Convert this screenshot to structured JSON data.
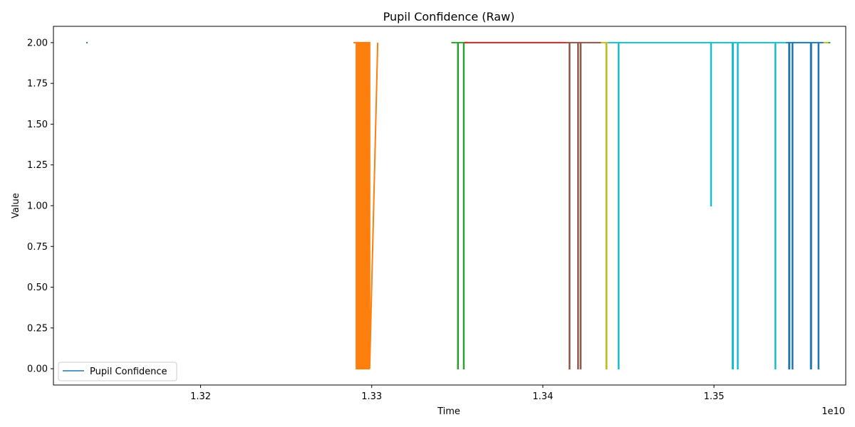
{
  "chart_data": {
    "type": "line",
    "title": "Pupil Confidence (Raw)",
    "xlabel": "Time",
    "ylabel": "Value",
    "x_offset_label": "1e10",
    "xlim": [
      1.3114,
      1.3577
    ],
    "ylim": [
      -0.1,
      2.1
    ],
    "x_ticks": [
      1.32,
      1.33,
      1.34,
      1.35
    ],
    "x_tick_labels": [
      "1.32",
      "1.33",
      "1.34",
      "1.35"
    ],
    "y_ticks": [
      0,
      0.25,
      0.5,
      0.75,
      1.0,
      1.25,
      1.5,
      1.75,
      2.0
    ],
    "y_tick_labels": [
      "0.00",
      "0.25",
      "0.50",
      "0.75",
      "1.00",
      "1.25",
      "1.50",
      "1.75",
      "2.00"
    ],
    "grid": false,
    "legend": {
      "placement": "lower-left",
      "entries": [
        "Pupil Confidence"
      ]
    },
    "series": [
      {
        "color": "#1f77b4",
        "segments": [
          {
            "x": [
              1.31332,
              1.3134
            ],
            "y": [
              2,
              2
            ]
          }
        ]
      },
      {
        "color": "#ff7f0e",
        "segments": [
          {
            "x": [
              1.32893,
              1.3291,
              1.3291,
              1.32913,
              1.32913,
              1.32916,
              1.32916,
              1.32919,
              1.32919,
              1.32922,
              1.32922,
              1.32925,
              1.32925,
              1.32928,
              1.32928,
              1.32931,
              1.32931,
              1.32934,
              1.32934,
              1.32937,
              1.32937,
              1.3294,
              1.3294,
              1.32943,
              1.32943,
              1.32946,
              1.32946,
              1.32949,
              1.32949,
              1.32952,
              1.32952,
              1.32955,
              1.32955,
              1.32958,
              1.32958,
              1.32961,
              1.32961,
              1.32964,
              1.32964,
              1.32967,
              1.32967,
              1.3297,
              1.3297,
              1.32973,
              1.32973,
              1.32976,
              1.32976,
              1.32979,
              1.32979,
              1.32982,
              1.32982,
              1.32985,
              1.32985,
              1.32988,
              1.32988,
              1.33035
            ],
            "y": [
              2,
              2,
              0,
              0,
              2,
              2,
              0,
              0,
              2,
              2,
              0,
              0,
              2,
              2,
              0,
              0,
              2,
              2,
              0,
              0,
              2,
              2,
              0,
              0,
              2,
              2,
              0,
              0,
              2,
              2,
              0,
              0,
              2,
              2,
              0,
              0,
              2,
              2,
              0,
              0,
              2,
              2,
              0,
              0,
              2,
              2,
              0,
              0,
              2,
              2,
              0,
              0,
              2,
              2,
              0,
              2
            ]
          }
        ]
      },
      {
        "color": "#2ca02c",
        "segments": [
          {
            "x": [
              1.33465,
              1.33503,
              1.33503,
              1.33505,
              1.33505,
              1.33537,
              1.33537,
              1.33539,
              1.33539,
              1.3356
            ],
            "y": [
              2,
              2,
              0,
              0,
              2,
              2,
              0,
              0,
              2,
              2
            ]
          },
          {
            "x": [
              1.35665,
              1.3568
            ],
            "y": [
              2,
              2
            ]
          }
        ]
      },
      {
        "color": "#d62728",
        "segments": [
          {
            "x": [
              1.3354,
              1.3414
            ],
            "y": [
              2,
              2
            ]
          }
        ]
      },
      {
        "color": "#8c564b",
        "segments": [
          {
            "x": [
              1.3414,
              1.34155,
              1.34155,
              1.34157,
              1.34157,
              1.34205,
              1.34205,
              1.34207,
              1.34207,
              1.3422,
              1.3422,
              1.34222,
              1.34222,
              1.3434
            ],
            "y": [
              2,
              2,
              0,
              0,
              2,
              2,
              0,
              0,
              2,
              2,
              0,
              0,
              2,
              2
            ]
          }
        ]
      },
      {
        "color": "#bcbd22",
        "segments": [
          {
            "x": [
              1.3434,
              1.3437,
              1.3437,
              1.34373,
              1.34373,
              1.3438
            ],
            "y": [
              2,
              2,
              0,
              0,
              2,
              2
            ]
          },
          {
            "x": [
              1.3564,
              1.3567
            ],
            "y": [
              2,
              2
            ]
          }
        ]
      },
      {
        "color": "#17becf",
        "segments": [
          {
            "x": [
              1.3438,
              1.34442,
              1.34442,
              1.34444,
              1.34444,
              1.34982,
              1.34982,
              1.34984,
              1.34984,
              1.35108,
              1.35108,
              1.35112,
              1.35112,
              1.35138,
              1.35138,
              1.3514,
              1.3514,
              1.35358,
              1.35358,
              1.3536,
              1.3536,
              1.3542
            ],
            "y": [
              2,
              2,
              0,
              0,
              2,
              2,
              1,
              1,
              2,
              2,
              0,
              0,
              2,
              2,
              0,
              0,
              2,
              2,
              0,
              0,
              2,
              2
            ]
          }
        ]
      },
      {
        "color": "#1f77b4",
        "segments": [
          {
            "x": [
              1.3542,
              1.35438,
              1.35438,
              1.35442,
              1.35442,
              1.35458,
              1.35458,
              1.3546,
              1.3546,
              1.35565,
              1.35565,
              1.35569,
              1.35569,
              1.3561,
              1.3561,
              1.35612,
              1.35612,
              1.3564
            ],
            "y": [
              2,
              2,
              0,
              0,
              2,
              2,
              0,
              0,
              2,
              2,
              0,
              0,
              2,
              2,
              0,
              0,
              2,
              2
            ]
          }
        ]
      }
    ]
  }
}
